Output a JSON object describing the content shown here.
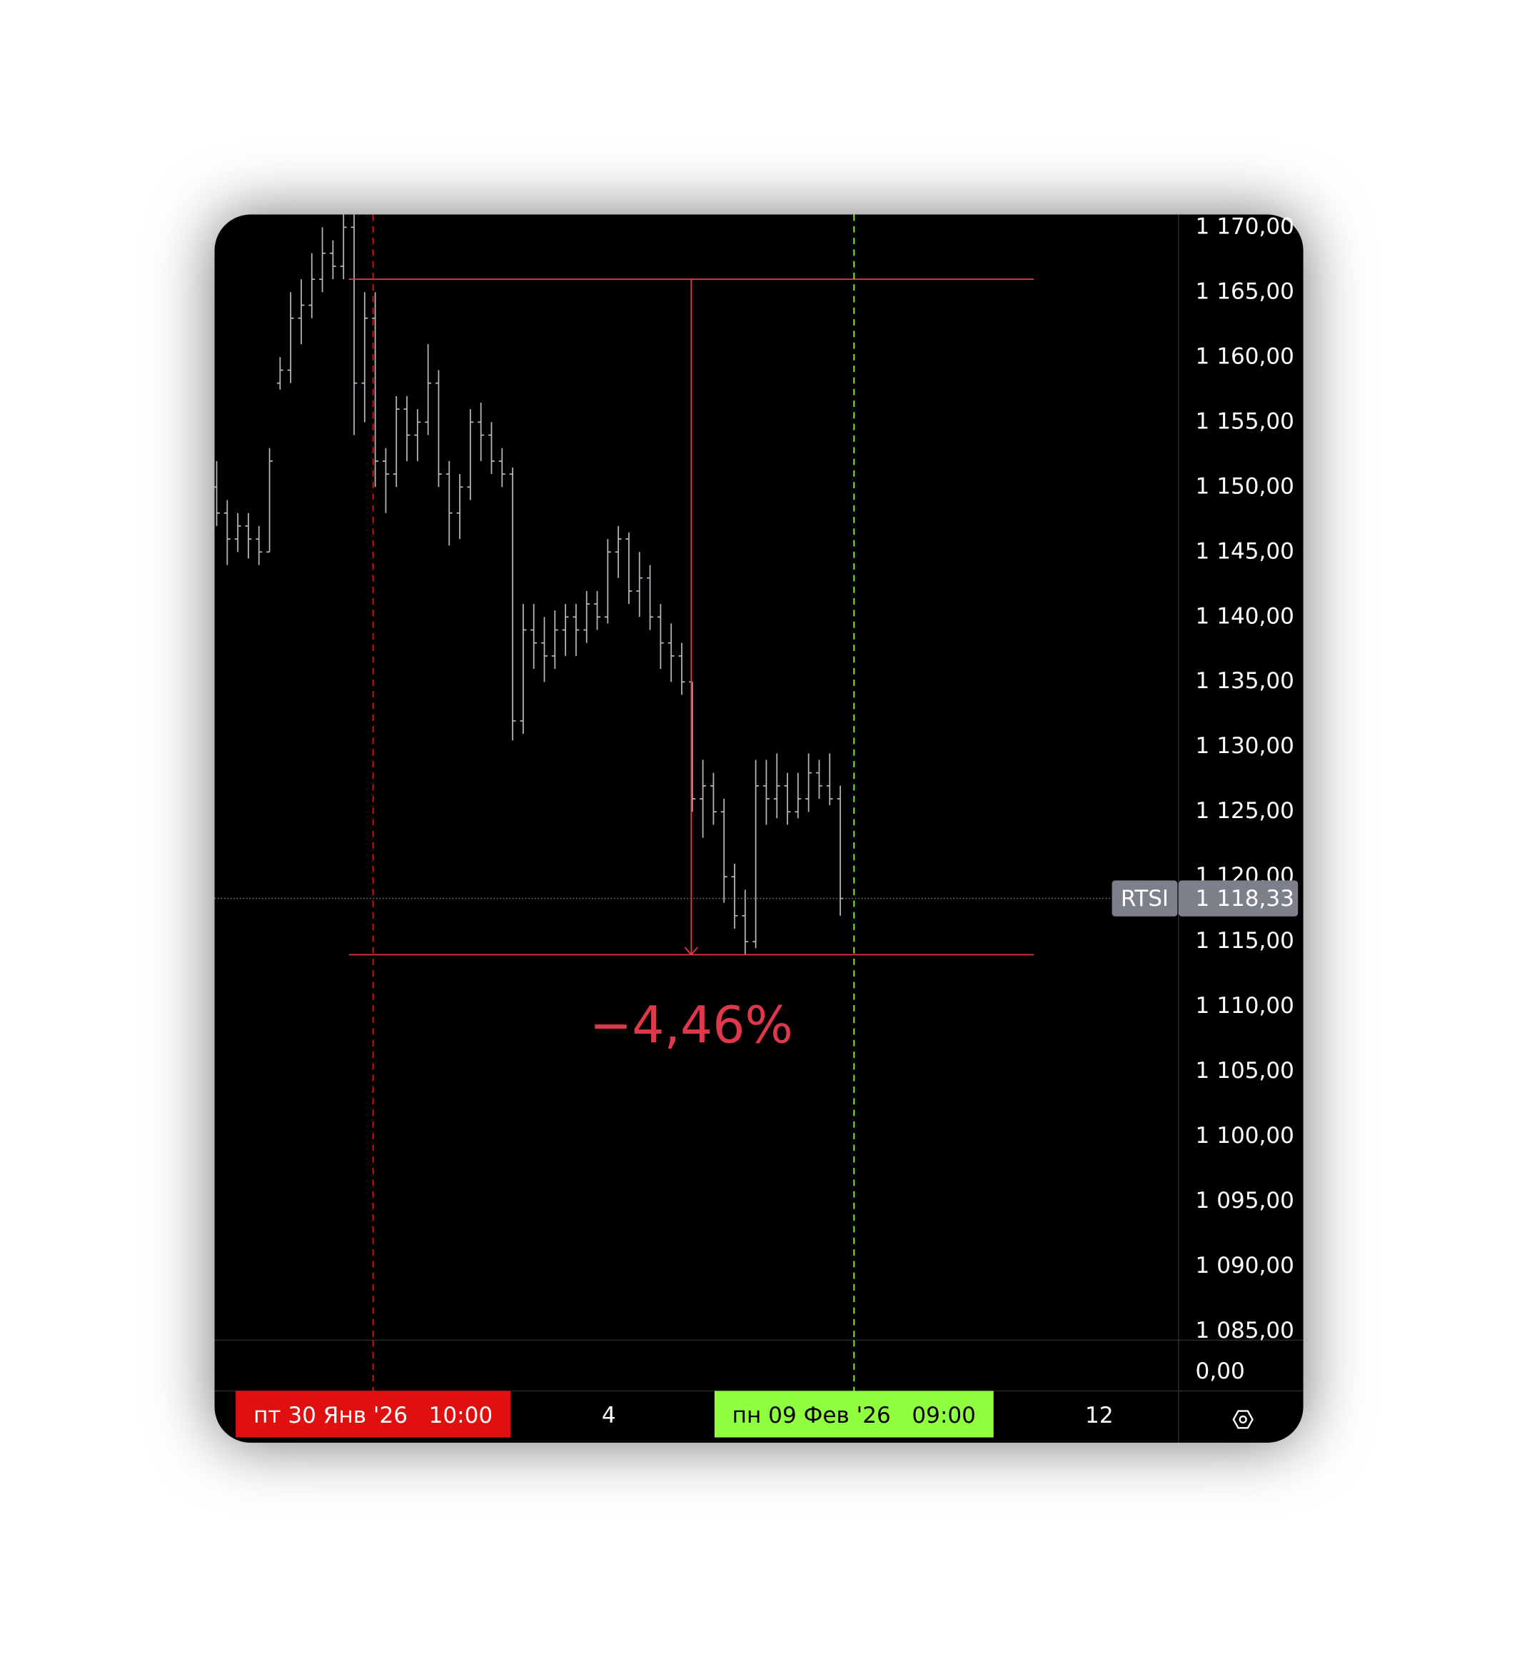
{
  "chart_data": {
    "type": "ohlc",
    "symbol": "RTSI",
    "ohlc": [
      [
        1150,
        1152,
        1147,
        1148
      ],
      [
        1148,
        1149,
        1144,
        1146
      ],
      [
        1146,
        1148,
        1145,
        1147
      ],
      [
        1147,
        1148,
        1144.5,
        1146
      ],
      [
        1146,
        1147,
        1144,
        1145
      ],
      [
        1145,
        1153,
        1145,
        1152
      ],
      [
        1158,
        1160,
        1157.5,
        1159
      ],
      [
        1159,
        1165,
        1158,
        1163
      ],
      [
        1163,
        1166,
        1161,
        1164
      ],
      [
        1164,
        1168,
        1163,
        1166
      ],
      [
        1166,
        1170,
        1165,
        1168
      ],
      [
        1168,
        1169,
        1166,
        1167
      ],
      [
        1167,
        1171,
        1166,
        1170
      ],
      [
        1170,
        1171,
        1154,
        1158
      ],
      [
        1158,
        1165,
        1155,
        1163
      ],
      [
        1163,
        1165,
        1150,
        1152
      ],
      [
        1152,
        1153,
        1148,
        1151
      ],
      [
        1151,
        1157,
        1150,
        1156
      ],
      [
        1156,
        1157,
        1152,
        1154
      ],
      [
        1154,
        1156,
        1152,
        1155
      ],
      [
        1155,
        1161,
        1154,
        1158
      ],
      [
        1158,
        1159,
        1150,
        1151
      ],
      [
        1151,
        1152,
        1145.5,
        1148
      ],
      [
        1148,
        1151,
        1146,
        1150
      ],
      [
        1150,
        1156,
        1149,
        1155
      ],
      [
        1155,
        1156.5,
        1152,
        1154
      ],
      [
        1154,
        1155,
        1151,
        1152
      ],
      [
        1152,
        1153,
        1150,
        1151
      ],
      [
        1151,
        1151.5,
        1130.5,
        1132
      ],
      [
        1132,
        1141,
        1131,
        1139
      ],
      [
        1139,
        1141,
        1136,
        1138
      ],
      [
        1138,
        1140,
        1135,
        1137
      ],
      [
        1137,
        1140.5,
        1136,
        1139
      ],
      [
        1139,
        1141,
        1137,
        1140
      ],
      [
        1140,
        1141,
        1137,
        1139
      ],
      [
        1139,
        1142,
        1138,
        1141
      ],
      [
        1141,
        1142,
        1139,
        1140
      ],
      [
        1140,
        1146,
        1139.5,
        1145
      ],
      [
        1145,
        1147,
        1143,
        1146
      ],
      [
        1146,
        1146.5,
        1141,
        1142
      ],
      [
        1142,
        1145,
        1140,
        1143
      ],
      [
        1143,
        1144,
        1139,
        1140
      ],
      [
        1140,
        1141,
        1136,
        1138
      ],
      [
        1138,
        1139.5,
        1135,
        1137
      ],
      [
        1137,
        1138,
        1134,
        1135
      ],
      [
        1135,
        1135,
        1125,
        1126
      ],
      [
        1126,
        1129,
        1123,
        1127
      ],
      [
        1127,
        1128,
        1124,
        1125
      ],
      [
        1125,
        1126,
        1118,
        1120
      ],
      [
        1120,
        1121,
        1116,
        1117
      ],
      [
        1117,
        1119,
        1114,
        1115
      ],
      [
        1115,
        1129,
        1114.5,
        1127
      ],
      [
        1127,
        1129,
        1124,
        1126
      ],
      [
        1126,
        1129.5,
        1124.5,
        1127
      ],
      [
        1127,
        1128,
        1124,
        1125
      ],
      [
        1125,
        1128,
        1124.5,
        1126
      ],
      [
        1126,
        1129.5,
        1125,
        1128
      ],
      [
        1128,
        1129,
        1126,
        1127
      ],
      [
        1127,
        1129.5,
        1125.5,
        1126
      ],
      [
        1126,
        1127,
        1117,
        1118.33
      ]
    ],
    "color": "#b2b5be",
    "ylim": [
      1084.32,
      1170.98
    ],
    "yticks": [
      {
        "value": 1085,
        "label": "1 085,00"
      },
      {
        "value": 1090,
        "label": "1 090,00"
      },
      {
        "value": 1095,
        "label": "1 095,00"
      },
      {
        "value": 1100,
        "label": "1 100,00"
      },
      {
        "value": 1105,
        "label": "1 105,00"
      },
      {
        "value": 1110,
        "label": "1 110,00"
      },
      {
        "value": 1115,
        "label": "1 115,00"
      },
      {
        "value": 1120,
        "label": "1 120,00"
      },
      {
        "value": 1125,
        "label": "1 125,00"
      },
      {
        "value": 1130,
        "label": "1 130,00"
      },
      {
        "value": 1135,
        "label": "1 135,00"
      },
      {
        "value": 1140,
        "label": "1 140,00"
      },
      {
        "value": 1145,
        "label": "1 145,00"
      },
      {
        "value": 1150,
        "label": "1 150,00"
      },
      {
        "value": 1155,
        "label": "1 155,00"
      },
      {
        "value": 1160,
        "label": "1 160,00"
      },
      {
        "value": 1165,
        "label": "1 165,00"
      },
      {
        "value": 1170,
        "label": "1 170,00"
      }
    ],
    "last_price": {
      "value": 1118.33,
      "label": "1 118,33"
    },
    "volume_ticks": [
      {
        "value": 0,
        "label": "0,00"
      }
    ],
    "measure": {
      "from": 1166,
      "to": 1114,
      "label": "−4,46%",
      "color": "#e0384a"
    },
    "markers": [
      {
        "label": "пт 30 Янв '26   10:00",
        "color": "#e01010",
        "text_color": "#ffffff"
      },
      {
        "label": "пн 09 Фев '26   09:00",
        "color": "#90ff40",
        "text_color": "#000000"
      }
    ],
    "xticks": [
      "4",
      "12"
    ]
  }
}
